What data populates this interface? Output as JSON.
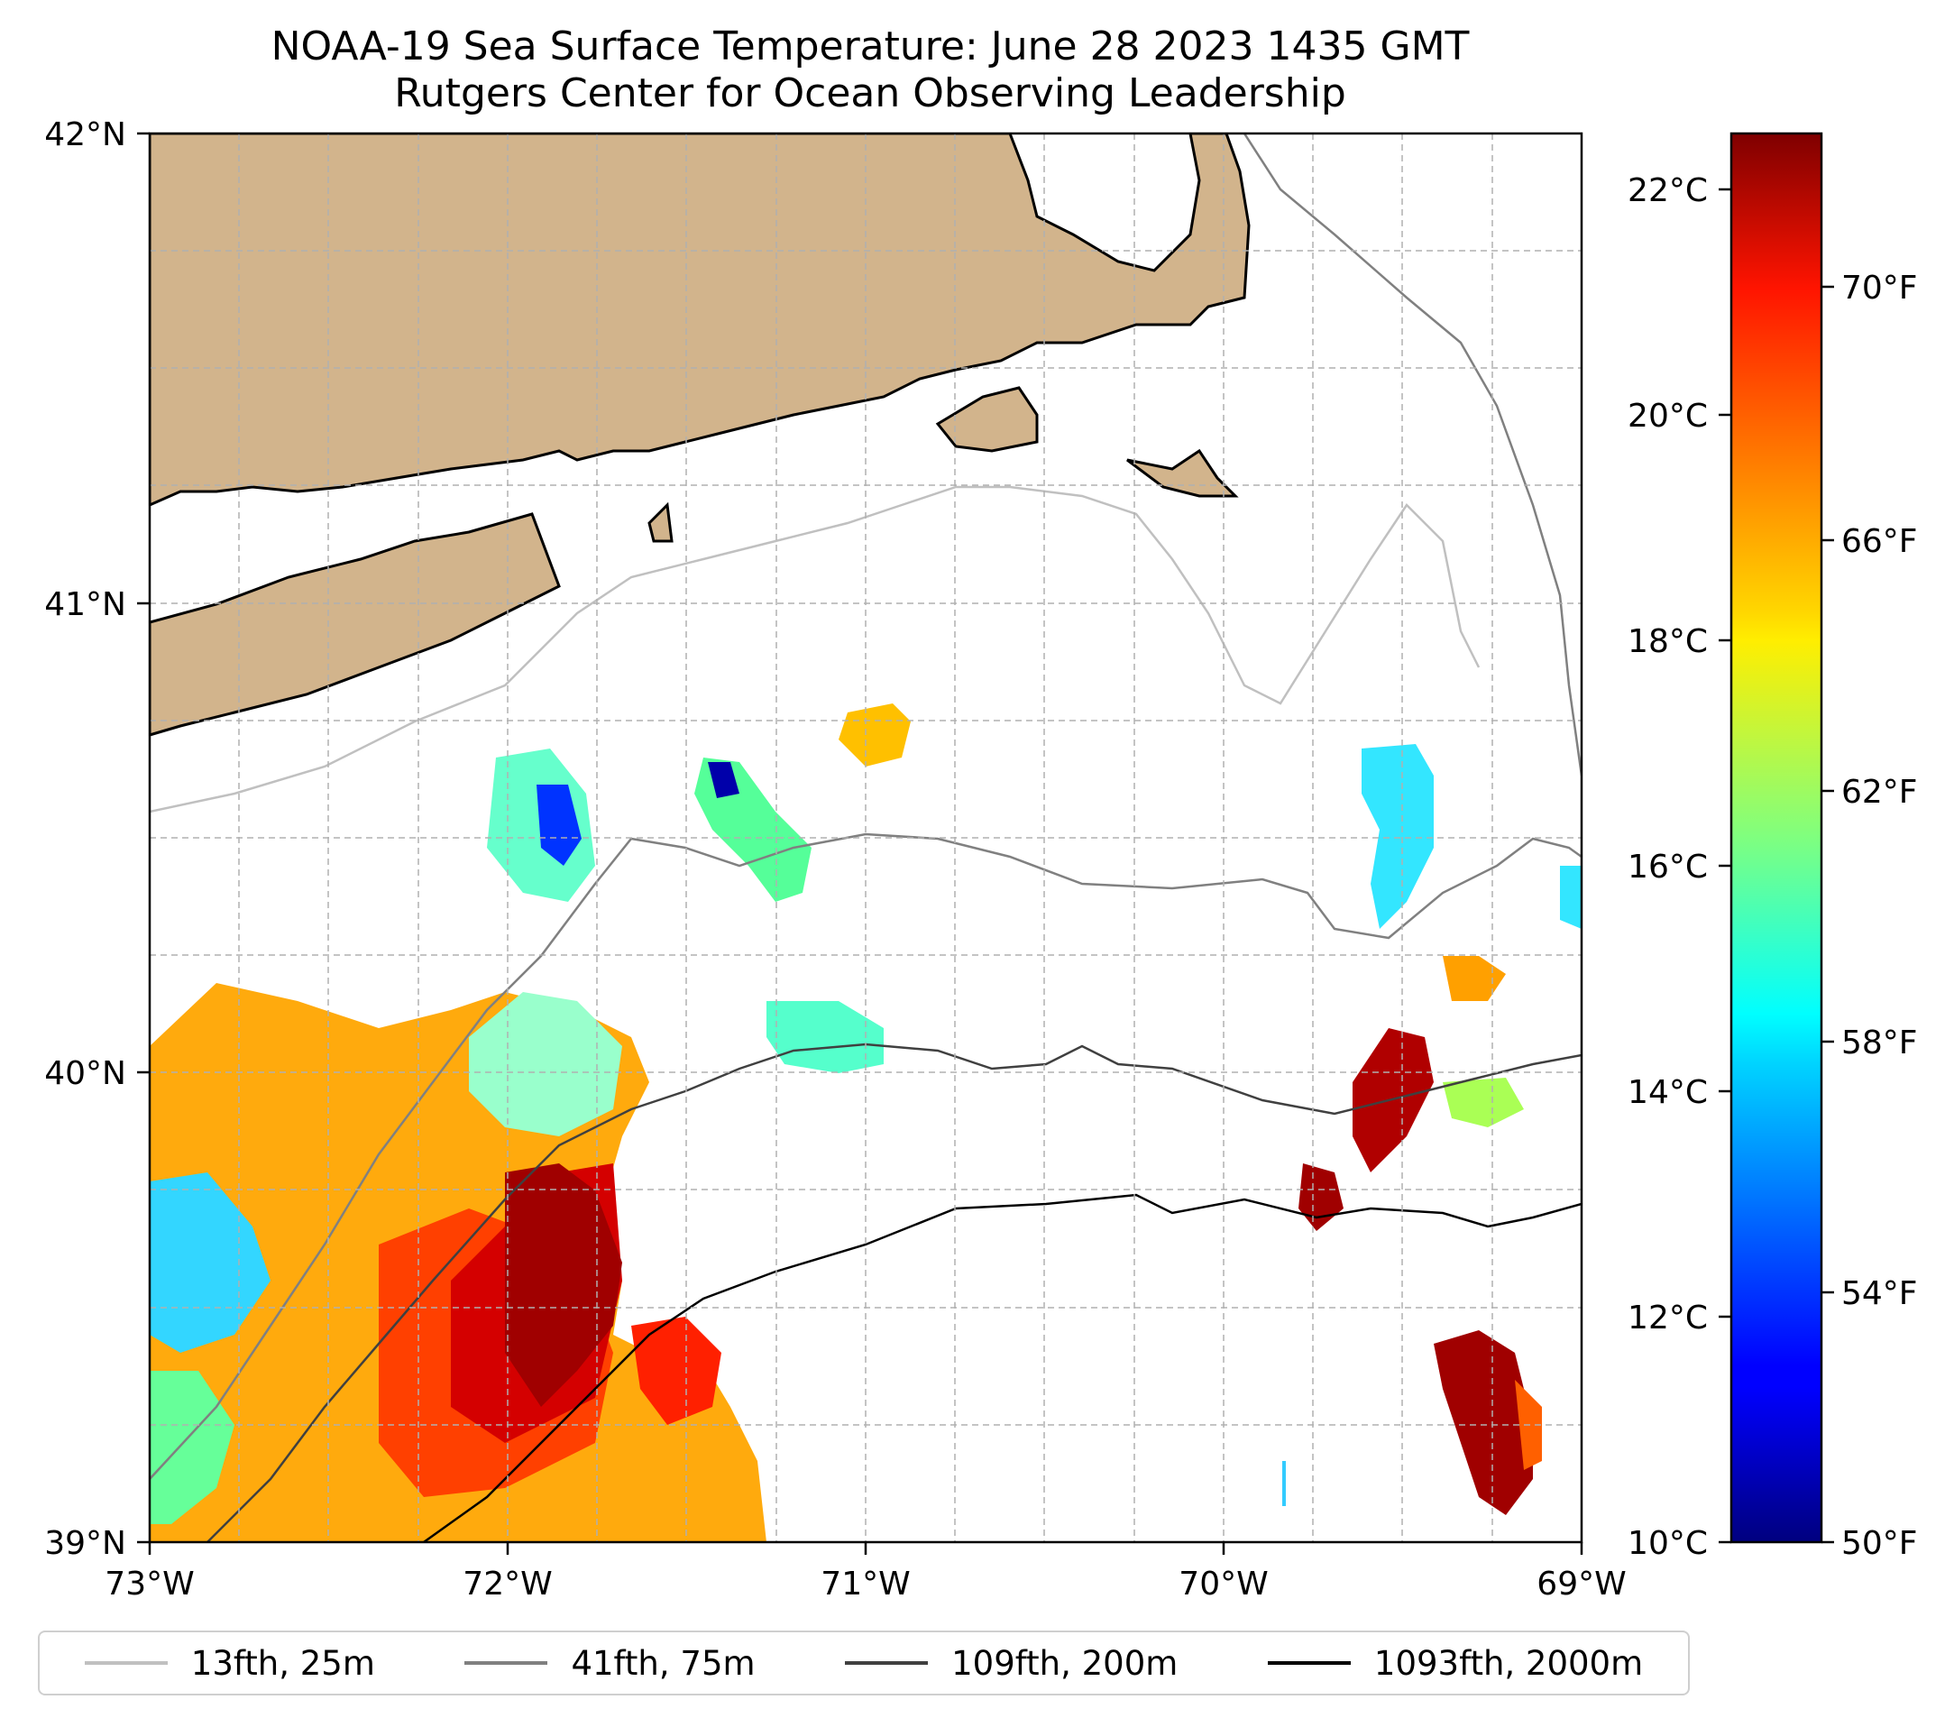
{
  "title": {
    "line1": "NOAA-19 Sea Surface Temperature: June 28 2023 1435 GMT",
    "line2": "Rutgers Center for Ocean Observing Leadership"
  },
  "axes": {
    "lon_ticks": [
      "73°W",
      "72°W",
      "71°W",
      "70°W",
      "69°W"
    ],
    "lat_ticks": [
      "42°N",
      "41°N",
      "40°N",
      "39°N"
    ],
    "lon_range": [
      -73,
      -69
    ],
    "lat_range": [
      39,
      42
    ],
    "grid": true
  },
  "colorbar": {
    "celsius_ticks": [
      "22°C",
      "20°C",
      "18°C",
      "16°C",
      "14°C",
      "12°C",
      "10°C"
    ],
    "fahrenheit_ticks": [
      "70°F",
      "66°F",
      "62°F",
      "58°F",
      "54°F",
      "50°F"
    ],
    "range_c": [
      10,
      22.5
    ],
    "colormap": "jet"
  },
  "legend": [
    {
      "label": "13fth, 25m",
      "color": "#c0c0c0"
    },
    {
      "label": "41fth, 75m",
      "color": "#808080"
    },
    {
      "label": "109fth, 200m",
      "color": "#404040"
    },
    {
      "label": "1093fth, 2000m",
      "color": "#000000"
    }
  ],
  "colors": {
    "land": "#d2b48c",
    "water": "#ffffff"
  }
}
